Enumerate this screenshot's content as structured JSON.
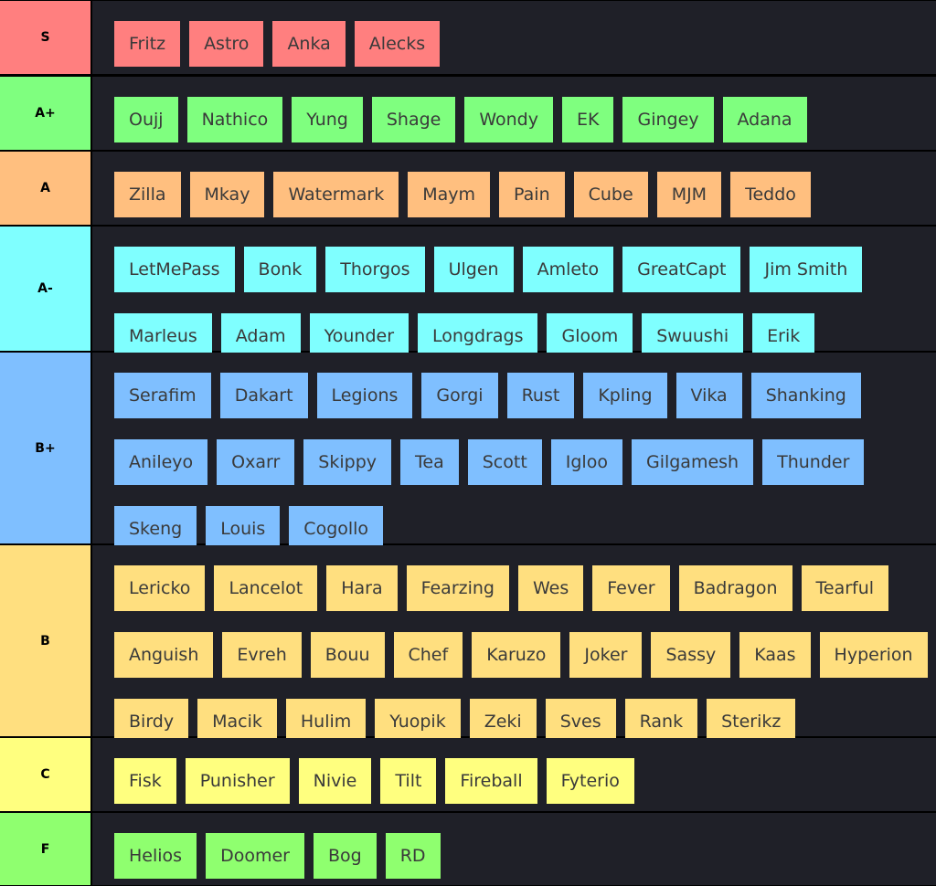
{
  "tiers": [
    {
      "label": "S",
      "color": "#ff7f7f",
      "items": [
        "Fritz",
        "Astro",
        "Anka",
        "Alecks"
      ]
    },
    {
      "label": "A+",
      "color": "#7fff7f",
      "items": [
        "Oujj",
        "Nathico",
        "Yung",
        "Shage",
        "Wondy",
        "EK",
        "Gingey",
        "Adana"
      ]
    },
    {
      "label": "A",
      "color": "#ffbf7f",
      "items": [
        "Zilla",
        "Mkay",
        "Watermark",
        "Maym",
        "Pain",
        "Cube",
        "MJM",
        "Teddo"
      ]
    },
    {
      "label": "A-",
      "color": "#7fffff",
      "items": [
        "LetMePass",
        "Bonk",
        "Thorgos",
        "Ulgen",
        "Amleto",
        "GreatCapt",
        "Jim Smith",
        "Marleus",
        "Adam",
        "Younder",
        "Longdrags",
        "Gloom",
        "Swuushi",
        "Erik"
      ]
    },
    {
      "label": "B+",
      "color": "#7fbfff",
      "items": [
        "Serafim",
        "Dakart",
        "Legions",
        "Gorgi",
        "Rust",
        "Kpling",
        "Vika",
        "Shanking",
        "Anileyo",
        "Oxarr",
        "Skippy",
        "Tea",
        "Scott",
        "Igloo",
        "Gilgamesh",
        "Thunder",
        "Skeng",
        "Louis",
        "Cogollo"
      ]
    },
    {
      "label": "B",
      "color": "#ffdf7f",
      "items": [
        "Lericko",
        "Lancelot",
        "Hara",
        "Fearzing",
        "Wes",
        "Fever",
        "Badragon",
        "Tearful",
        "Anguish",
        "Evreh",
        "Bouu",
        "Chef",
        "Karuzo",
        "Joker",
        "Sassy",
        "Kaas",
        "Hyperion",
        "Birdy",
        "Macik",
        "Hulim",
        "Yuopik",
        "Zeki",
        "Sves",
        "Rank",
        "Sterikz"
      ]
    },
    {
      "label": "C",
      "color": "#ffff7f",
      "items": [
        "Fisk",
        "Punisher",
        "Nivie",
        "Tilt",
        "Fireball",
        "Fyterio"
      ]
    },
    {
      "label": "F",
      "color": "#8fff6f",
      "items": [
        "Helios",
        "Doomer",
        "Bog",
        "RD"
      ]
    }
  ]
}
